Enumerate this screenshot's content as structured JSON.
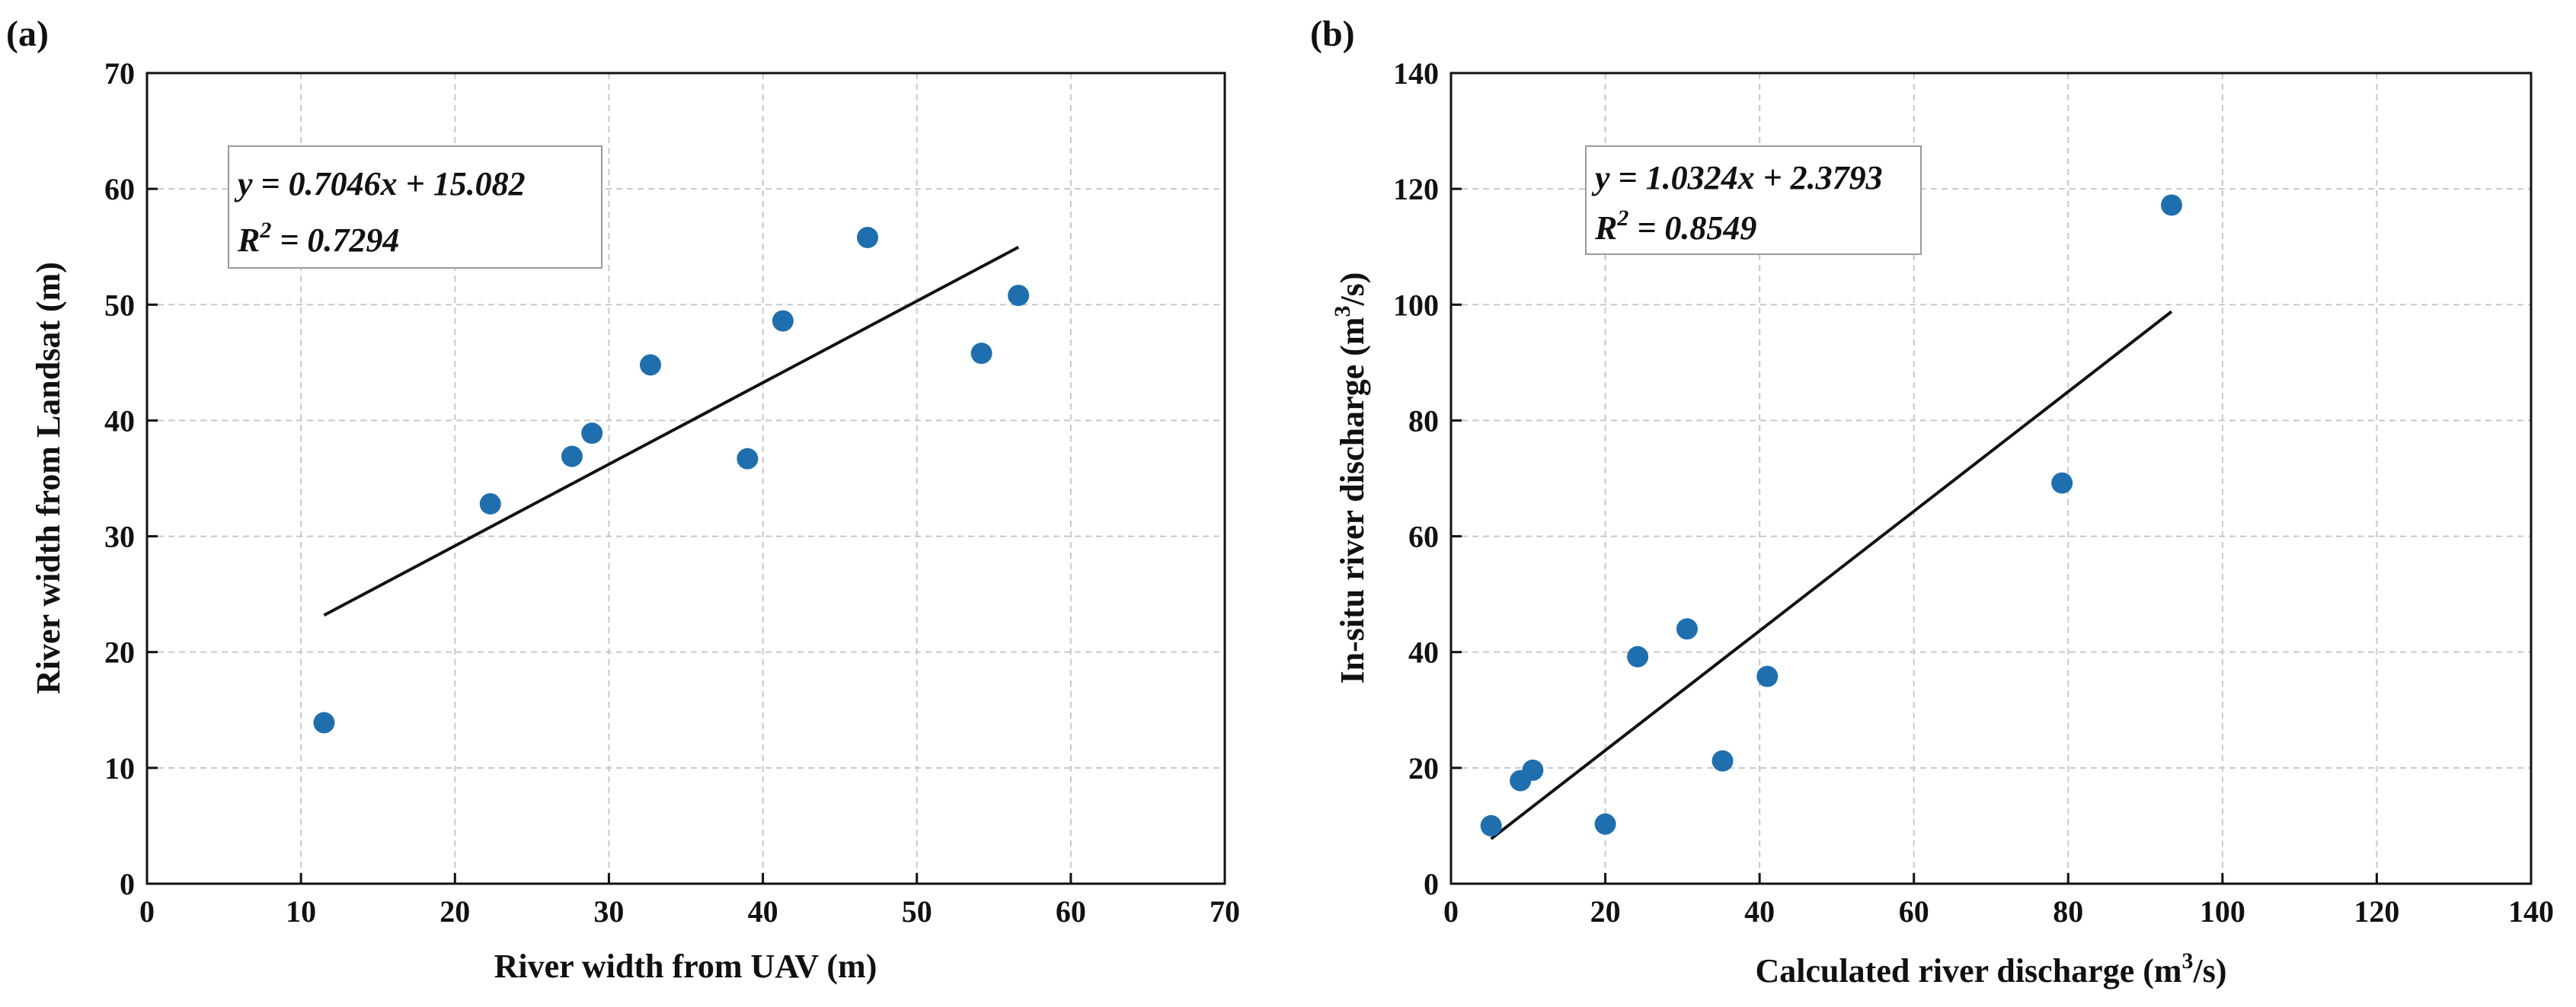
{
  "chart_data": [
    {
      "type": "scatter",
      "panel_label": "(a)",
      "xlabel": "River width from UAV (m)",
      "ylabel": "River width from  Landsat (m)",
      "xlim": [
        0,
        70
      ],
      "ylim": [
        0,
        70
      ],
      "xticks": [
        "0",
        "10",
        "20",
        "30",
        "40",
        "50",
        "60",
        "70"
      ],
      "yticks": [
        "0",
        "10",
        "20",
        "30",
        "40",
        "50",
        "60",
        "70"
      ],
      "grid": true,
      "point_color": "#1f6fae",
      "series": [
        {
          "name": "observations",
          "x": [
            11.5,
            22.3,
            27.6,
            28.9,
            32.7,
            39.0,
            41.3,
            46.8,
            54.2,
            56.6
          ],
          "y": [
            13.9,
            32.8,
            36.9,
            38.9,
            44.8,
            36.7,
            48.6,
            55.8,
            45.8,
            50.8
          ]
        }
      ],
      "fit_line": {
        "slope": 0.7046,
        "intercept": 15.082,
        "x_range": [
          11.5,
          56.6
        ]
      },
      "equation": "y = 0.7046x + 15.082",
      "r2_prefix": "R",
      "r2_exp": "2",
      "r2_value": " = 0.7294"
    },
    {
      "type": "scatter",
      "panel_label": "(b)",
      "xlabel_main": "Calculated river discharge (m",
      "xlabel_sup": "3",
      "xlabel_end": "/s)",
      "ylabel_main": "In-situ river discharge (m",
      "ylabel_sup": "3",
      "ylabel_end": "/s)",
      "xlim": [
        0,
        140
      ],
      "ylim": [
        0,
        140
      ],
      "xticks": [
        "0",
        "20",
        "40",
        "60",
        "80",
        "100",
        "120",
        "140"
      ],
      "yticks": [
        "0",
        "20",
        "40",
        "60",
        "80",
        "100",
        "120",
        "140"
      ],
      "grid": true,
      "point_color": "#1f6fae",
      "series": [
        {
          "name": "observations",
          "x": [
            5.2,
            9.0,
            10.6,
            20.0,
            24.2,
            30.6,
            35.2,
            41.0,
            79.2,
            93.4
          ],
          "y": [
            10.0,
            17.8,
            19.6,
            10.3,
            39.2,
            44.0,
            21.2,
            35.8,
            69.2,
            117.2
          ]
        }
      ],
      "fit_line": {
        "slope": 1.0324,
        "intercept": 2.3793,
        "x_range": [
          5.2,
          93.4
        ]
      },
      "equation": "y = 1.0324x + 2.3793",
      "r2_prefix": "R",
      "r2_exp": "2",
      "r2_value": " = 0.8549"
    }
  ]
}
